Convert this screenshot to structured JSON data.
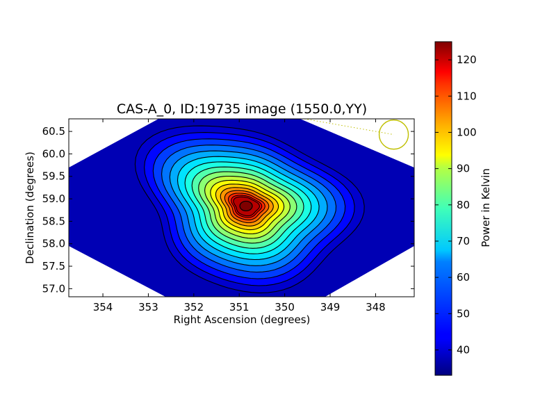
{
  "chart_data": {
    "type": "heatmap",
    "title": "CAS-A_0, ID:19735 image (1550.0,YY)",
    "xlabel": "Right Ascension (degrees)",
    "ylabel": "Declination (degrees)",
    "xlim": [
      354.75,
      347.15
    ],
    "ylim": [
      56.82,
      60.78
    ],
    "x_ticks": [
      354,
      353,
      352,
      351,
      350,
      349,
      348
    ],
    "x_tick_labels": [
      "354",
      "353",
      "352",
      "351",
      "350",
      "349",
      "348"
    ],
    "y_ticks": [
      57.0,
      57.5,
      58.0,
      58.5,
      59.0,
      59.5,
      60.0,
      60.5
    ],
    "y_tick_labels": [
      "57.0",
      "57.5",
      "58.0",
      "58.5",
      "59.0",
      "59.5",
      "60.0",
      "60.5"
    ],
    "x_axis_reversed": true,
    "grid": false,
    "source_peak": {
      "ra": 350.85,
      "dec": 58.84,
      "value": 125
    },
    "background_level": 34,
    "contour_levels": [
      40,
      45,
      50,
      55,
      60,
      65,
      70,
      75,
      80,
      85,
      90,
      95,
      100,
      105,
      110,
      115,
      120
    ],
    "beam_marker": {
      "ra": 347.6,
      "dec": 60.43,
      "color": "#bfbf00"
    },
    "colorbar": {
      "label": "Power in Kelvin",
      "colormap": "jet",
      "vmin": 33,
      "vmax": 125,
      "ticks": [
        40,
        50,
        60,
        70,
        80,
        90,
        100,
        110,
        120
      ],
      "tick_labels": [
        "40",
        "50",
        "60",
        "70",
        "80",
        "90",
        "100",
        "110",
        "120"
      ]
    }
  }
}
